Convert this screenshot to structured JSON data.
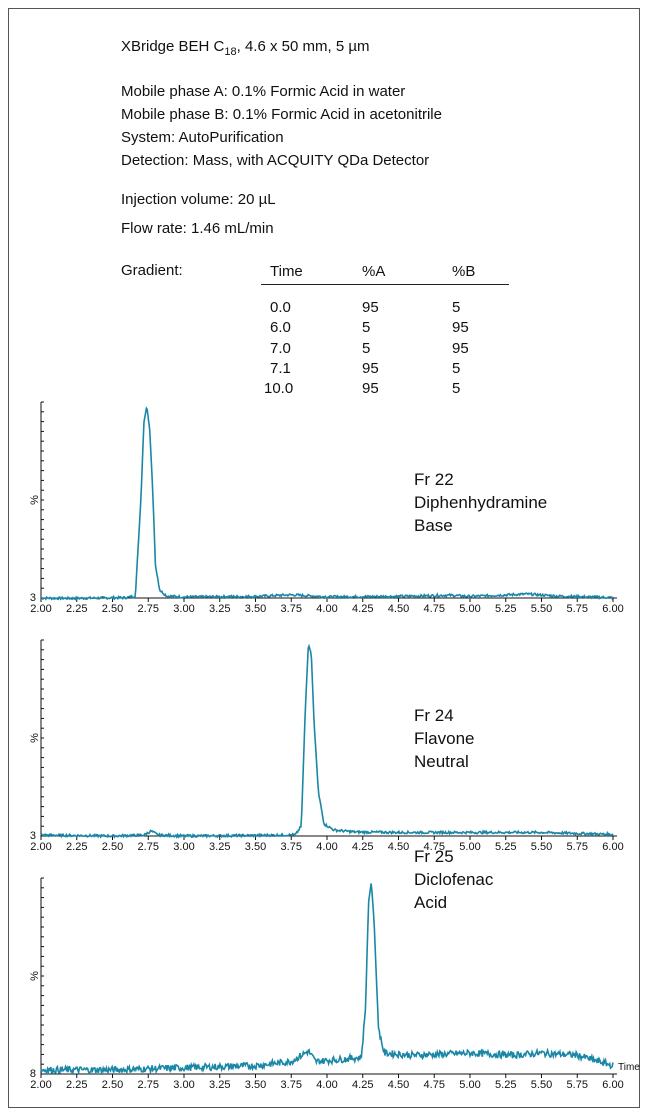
{
  "conditions": {
    "column_prefix": "XBridge BEH C",
    "column_sub": "18",
    "column_suffix": ", 4.6 x 50 mm, 5 µm",
    "mobile_a": "Mobile phase A: 0.1% Formic Acid in water",
    "mobile_b": "Mobile phase B: 0.1% Formic Acid in acetonitrile",
    "system": "System: AutoPurification",
    "detection": "Detection: Mass, with ACQUITY QDa Detector",
    "injection": "Injection volume: 20 µL",
    "flow": "Flow rate: 1.46 mL/min"
  },
  "gradient": {
    "label": "Gradient:",
    "headers": [
      "Time",
      "%A",
      "%B"
    ],
    "rows": [
      [
        "0.0",
        "95",
        "5"
      ],
      [
        "6.0",
        "5",
        "95"
      ],
      [
        "7.0",
        "5",
        "95"
      ],
      [
        "7.1",
        "95",
        "5"
      ],
      [
        "10.0",
        "95",
        "5"
      ]
    ]
  },
  "chart_data": [
    {
      "type": "line",
      "xlim": [
        2.0,
        6.0
      ],
      "x_ticks": [
        "2.00",
        "2.25",
        "2.50",
        "2.75",
        "3.00",
        "3.25",
        "3.50",
        "3.75",
        "4.00",
        "4.25",
        "4.50",
        "4.75",
        "5.00",
        "5.25",
        "5.50",
        "5.75",
        "6.00"
      ],
      "ylabel": "%",
      "y_bottom_label": "3",
      "annotation": [
        "Fr 22",
        "Diphenhydramine",
        "Base"
      ],
      "color": "#1a87a6",
      "baseline": 3,
      "series": [
        {
          "values_peak": {
            "center": 2.74,
            "width": 0.045,
            "height": 100
          },
          "points": [
            [
              2.0,
              3
            ],
            [
              2.2,
              2.8
            ],
            [
              2.4,
              3
            ],
            [
              2.6,
              3.2
            ],
            [
              2.66,
              4
            ],
            [
              2.7,
              55
            ],
            [
              2.72,
              92
            ],
            [
              2.74,
              100
            ],
            [
              2.76,
              88
            ],
            [
              2.78,
              60
            ],
            [
              2.8,
              20
            ],
            [
              2.83,
              7
            ],
            [
              2.88,
              4
            ],
            [
              3.0,
              3.5
            ],
            [
              3.5,
              3.8
            ],
            [
              3.75,
              4.6
            ],
            [
              4.0,
              3.6
            ],
            [
              4.5,
              3.8
            ],
            [
              4.86,
              4.4
            ],
            [
              5.0,
              3.8
            ],
            [
              5.4,
              5
            ],
            [
              5.6,
              4
            ],
            [
              6.0,
              3.2
            ]
          ]
        }
      ]
    },
    {
      "type": "line",
      "xlim": [
        2.0,
        6.0
      ],
      "x_ticks": [
        "2.00",
        "2.25",
        "2.50",
        "2.75",
        "3.00",
        "3.25",
        "3.50",
        "3.75",
        "4.00",
        "4.25",
        "4.50",
        "4.75",
        "5.00",
        "5.25",
        "5.50",
        "5.75",
        "6.00"
      ],
      "ylabel": "%",
      "y_bottom_label": "3",
      "annotation": [
        "Fr 24",
        "Flavone",
        "Neutral"
      ],
      "color": "#1a87a6",
      "baseline": 3,
      "series": [
        {
          "points": [
            [
              2.0,
              3.5
            ],
            [
              2.5,
              3
            ],
            [
              2.72,
              3.5
            ],
            [
              2.77,
              5.5
            ],
            [
              2.82,
              3.5
            ],
            [
              3.0,
              3
            ],
            [
              3.5,
              3.3
            ],
            [
              3.78,
              3.6
            ],
            [
              3.82,
              8
            ],
            [
              3.85,
              70
            ],
            [
              3.87,
              100
            ],
            [
              3.89,
              95
            ],
            [
              3.91,
              60
            ],
            [
              3.94,
              25
            ],
            [
              3.98,
              9
            ],
            [
              4.05,
              6
            ],
            [
              4.2,
              5
            ],
            [
              4.5,
              4.8
            ],
            [
              5.0,
              4.8
            ],
            [
              5.5,
              4.8
            ],
            [
              6.0,
              3.8
            ]
          ]
        }
      ]
    },
    {
      "type": "line",
      "xlim": [
        2.0,
        6.0
      ],
      "x_ticks": [
        "2.00",
        "2.25",
        "2.50",
        "2.75",
        "3.00",
        "3.25",
        "3.50",
        "3.75",
        "4.00",
        "4.25",
        "4.50",
        "4.75",
        "5.00",
        "5.25",
        "5.50",
        "5.75",
        "6.00"
      ],
      "xlabel": "Time",
      "ylabel": "%",
      "y_bottom_label": "8",
      "annotation": [
        "Fr 25",
        "Diclofenac",
        "Acid"
      ],
      "color": "#1a87a6",
      "baseline": 8,
      "series": [
        {
          "points": [
            [
              2.0,
              10
            ],
            [
              2.5,
              10
            ],
            [
              3.0,
              11
            ],
            [
              3.5,
              12
            ],
            [
              3.75,
              14
            ],
            [
              3.87,
              19
            ],
            [
              3.92,
              14
            ],
            [
              4.1,
              15
            ],
            [
              4.24,
              16
            ],
            [
              4.27,
              40
            ],
            [
              4.29,
              90
            ],
            [
              4.31,
              100
            ],
            [
              4.33,
              80
            ],
            [
              4.36,
              30
            ],
            [
              4.4,
              18
            ],
            [
              4.6,
              17
            ],
            [
              5.0,
              18
            ],
            [
              5.3,
              17
            ],
            [
              5.5,
              18
            ],
            [
              5.75,
              17
            ],
            [
              6.0,
              12
            ]
          ]
        }
      ]
    }
  ]
}
